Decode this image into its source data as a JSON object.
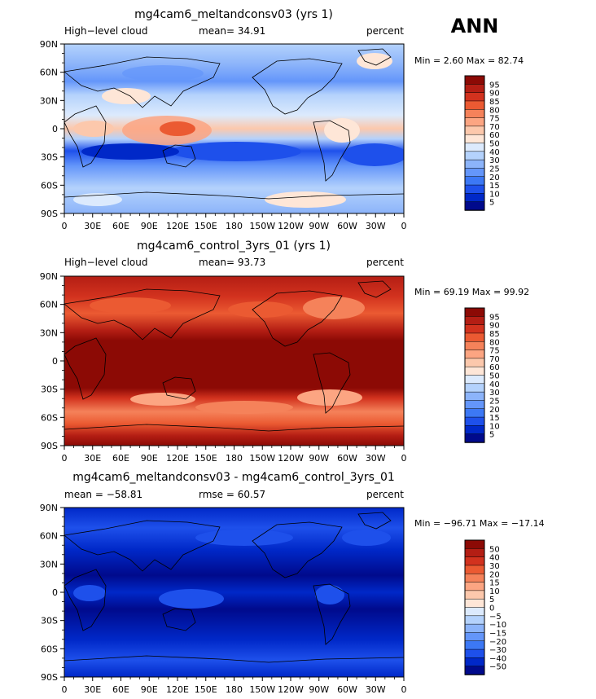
{
  "season_label": "ANN",
  "colors": {
    "main_scale": [
      "#000a8c",
      "#0028c8",
      "#1e50eb",
      "#3c78f5",
      "#6496fa",
      "#8cb4fa",
      "#b4d2fc",
      "#dceafd",
      "#fee6d7",
      "#fcc8ac",
      "#fca582",
      "#f5825a",
      "#eb5a32",
      "#d2321e",
      "#b41e14",
      "#8c0a05"
    ],
    "diff_scale": [
      "#000a8c",
      "#0028c8",
      "#1e50eb",
      "#3c78f5",
      "#6496fa",
      "#8cb4fa",
      "#b4d2fc",
      "#dceafd",
      "#fee6d7",
      "#fcc8ac",
      "#fca582",
      "#f5825a",
      "#eb5a32",
      "#d2321e",
      "#b41e14",
      "#8c0a05"
    ]
  },
  "chart_data": [
    {
      "type": "heatmap",
      "title": "mg4cam6_meltandconsv03 (yrs 1)",
      "variable_label": "High−level cloud",
      "stat_label": "mean=  34.91",
      "units": "percent",
      "min_max_label": "Min =    2.60 Max =   82.74",
      "field_min": 2.6,
      "field_max": 82.74,
      "mean": 34.91,
      "legend_levels": [
        "95",
        "90",
        "85",
        "80",
        "75",
        "70",
        "60",
        "50",
        "40",
        "30",
        "25",
        "20",
        "15",
        "10",
        "5"
      ],
      "xticks": [
        "0",
        "30E",
        "60E",
        "90E",
        "120E",
        "150E",
        "180",
        "150W",
        "120W",
        "90W",
        "60W",
        "30W",
        "0"
      ],
      "yticks": [
        "90N",
        "60N",
        "30N",
        "0",
        "30S",
        "60S",
        "90S"
      ],
      "xlim": [
        0,
        360
      ],
      "ylim": [
        -90,
        90
      ]
    },
    {
      "type": "heatmap",
      "title": "mg4cam6_control_3yrs_01 (yrs 1)",
      "variable_label": "High−level cloud",
      "stat_label": "mean=  93.73",
      "units": "percent",
      "min_max_label": "Min =  69.19 Max =  99.92",
      "field_min": 69.19,
      "field_max": 99.92,
      "mean": 93.73,
      "legend_levels": [
        "95",
        "90",
        "85",
        "80",
        "75",
        "70",
        "60",
        "50",
        "40",
        "30",
        "25",
        "20",
        "15",
        "10",
        "5"
      ],
      "xticks": [
        "0",
        "30E",
        "60E",
        "90E",
        "120E",
        "150E",
        "180",
        "150W",
        "120W",
        "90W",
        "60W",
        "30W",
        "0"
      ],
      "yticks": [
        "90N",
        "60N",
        "30N",
        "0",
        "30S",
        "60S",
        "90S"
      ],
      "xlim": [
        0,
        360
      ],
      "ylim": [
        -90,
        90
      ]
    },
    {
      "type": "heatmap",
      "title": "mg4cam6_meltandconsv03 - mg4cam6_control_3yrs_01",
      "variable_label": "mean = −58.81",
      "stat_label": "rmse =  60.57",
      "units": "percent",
      "min_max_label": "Min = −96.71 Max = −17.14",
      "field_min": -96.71,
      "field_max": -17.14,
      "mean": -58.81,
      "rmse": 60.57,
      "legend_levels": [
        "50",
        "40",
        "30",
        "20",
        "15",
        "10",
        "5",
        "0",
        "−5",
        "−10",
        "−15",
        "−20",
        "−30",
        "−40",
        "−50"
      ],
      "xticks": [
        "0",
        "30E",
        "60E",
        "90E",
        "120E",
        "150E",
        "180",
        "150W",
        "120W",
        "90W",
        "60W",
        "30W",
        "0"
      ],
      "yticks": [
        "90N",
        "60N",
        "30N",
        "0",
        "30S",
        "60S",
        "90S"
      ],
      "xlim": [
        0,
        360
      ],
      "ylim": [
        -90,
        90
      ]
    }
  ]
}
